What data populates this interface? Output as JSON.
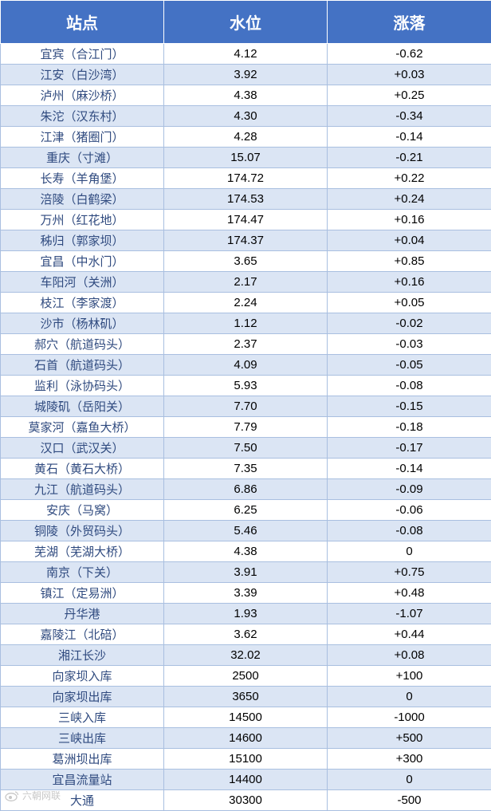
{
  "header": {
    "station": "站点",
    "level": "水位",
    "change": "涨落"
  },
  "rows": [
    {
      "station": "宜宾（合江门）",
      "level": "4.12",
      "change": "-0.62"
    },
    {
      "station": "江安（白沙湾）",
      "level": "3.92",
      "change": "+0.03"
    },
    {
      "station": "泸州（麻沙桥）",
      "level": "4.38",
      "change": "+0.25"
    },
    {
      "station": "朱沱（汉东村）",
      "level": "4.30",
      "change": "-0.34"
    },
    {
      "station": "江津（猪圈门）",
      "level": "4.28",
      "change": "-0.14"
    },
    {
      "station": "重庆（寸滩）",
      "level": "15.07",
      "change": "-0.21"
    },
    {
      "station": "长寿（羊角堡）",
      "level": "174.72",
      "change": "+0.22"
    },
    {
      "station": "涪陵（白鹤梁）",
      "level": "174.53",
      "change": "+0.24"
    },
    {
      "station": "万州（红花地）",
      "level": "174.47",
      "change": "+0.16"
    },
    {
      "station": "秭归（郭家坝）",
      "level": "174.37",
      "change": "+0.04"
    },
    {
      "station": "宜昌（中水门）",
      "level": "3.65",
      "change": "+0.85"
    },
    {
      "station": "车阳河（关洲）",
      "level": "2.17",
      "change": "+0.16"
    },
    {
      "station": "枝江（李家渡）",
      "level": "2.24",
      "change": "+0.05"
    },
    {
      "station": "沙市（杨林矶）",
      "level": "1.12",
      "change": "-0.02"
    },
    {
      "station": "郝穴（航道码头）",
      "level": "2.37",
      "change": "-0.03"
    },
    {
      "station": "石首（航道码头）",
      "level": "4.09",
      "change": "-0.05"
    },
    {
      "station": "监利（泳协码头）",
      "level": "5.93",
      "change": "-0.08"
    },
    {
      "station": "城陵矶（岳阳关）",
      "level": "7.70",
      "change": "-0.15"
    },
    {
      "station": "莫家河（嘉鱼大桥）",
      "level": "7.79",
      "change": "-0.18"
    },
    {
      "station": "汉口（武汉关）",
      "level": "7.50",
      "change": "-0.17"
    },
    {
      "station": "黄石（黄石大桥）",
      "level": "7.35",
      "change": "-0.14"
    },
    {
      "station": "九江（航道码头）",
      "level": "6.86",
      "change": "-0.09"
    },
    {
      "station": "安庆（马窝）",
      "level": "6.25",
      "change": "-0.06"
    },
    {
      "station": "铜陵（外贸码头）",
      "level": "5.46",
      "change": "-0.08"
    },
    {
      "station": "芜湖（芜湖大桥）",
      "level": "4.38",
      "change": "0"
    },
    {
      "station": "南京（下关）",
      "level": "3.91",
      "change": "+0.75"
    },
    {
      "station": "镇江（定易洲）",
      "level": "3.39",
      "change": "+0.48"
    },
    {
      "station": "丹华港",
      "level": "1.93",
      "change": "-1.07"
    },
    {
      "station": "嘉陵江（北碚）",
      "level": "3.62",
      "change": "+0.44"
    },
    {
      "station": "湘江长沙",
      "level": "32.02",
      "change": "+0.08"
    },
    {
      "station": "向家坝入库",
      "level": "2500",
      "change": "+100"
    },
    {
      "station": "向家坝出库",
      "level": "3650",
      "change": "0"
    },
    {
      "station": "三峡入库",
      "level": "14500",
      "change": "-1000"
    },
    {
      "station": "三峡出库",
      "level": "14600",
      "change": "+500"
    },
    {
      "station": "葛洲坝出库",
      "level": "15100",
      "change": "+300"
    },
    {
      "station": "宜昌流量站",
      "level": "14400",
      "change": "0"
    },
    {
      "station": "大通",
      "level": "30300",
      "change": "-500"
    }
  ],
  "watermark": {
    "text": "六朝网联",
    "icon": "weibo-logo-icon"
  }
}
